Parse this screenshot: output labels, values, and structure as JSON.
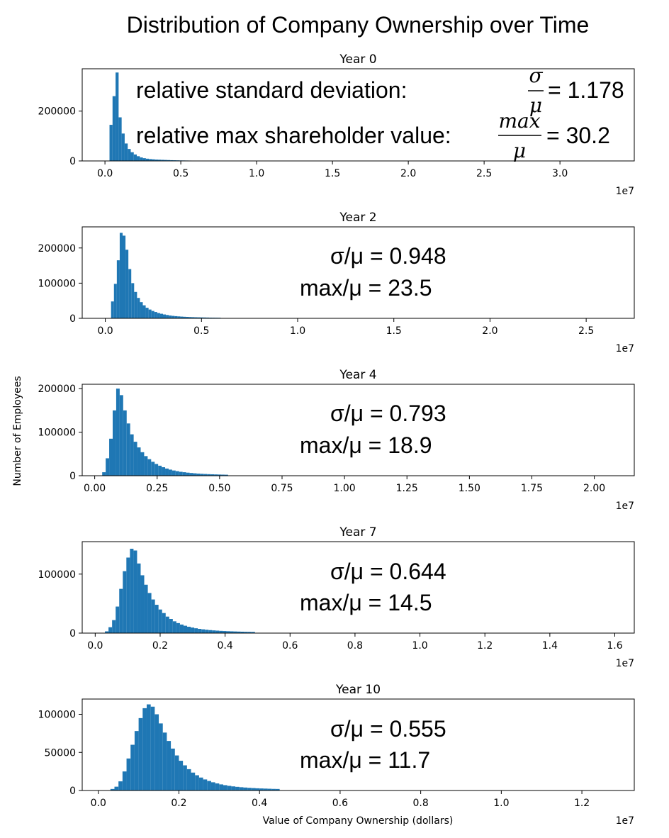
{
  "figure": {
    "suptitle": "Distribution of Company Ownership over Time",
    "ylabel": "Number of Employees",
    "xlabel": "Value of Company Ownership (dollars)",
    "bar_color": "#1f77b4",
    "offset_text": "1e7"
  },
  "annotations": {
    "year0": {
      "rsd_label": "relative standard deviation:",
      "max_label": "relative max shareholder value:",
      "sigma": "σ",
      "mu": "μ",
      "max": "max",
      "rsd_value": "= 1.178",
      "max_value": "= 30.2"
    },
    "others": [
      {
        "rsd": "σ/μ = 0.948",
        "max": "max/μ = 23.5"
      },
      {
        "rsd": "σ/μ = 0.793",
        "max": "max/μ = 18.9"
      },
      {
        "rsd": "σ/μ = 0.644",
        "max": "max/μ = 14.5"
      },
      {
        "rsd": "σ/μ = 0.555",
        "max": "max/μ = 11.7"
      }
    ]
  },
  "chart_data": [
    {
      "type": "bar",
      "title": "Year 0",
      "xlabel": "",
      "ylabel": "Number of Employees",
      "xlim": [
        -1500000,
        34900000
      ],
      "ylim": [
        0,
        370000
      ],
      "xticks": [
        0,
        5000000,
        10000000,
        15000000,
        20000000,
        25000000,
        30000000
      ],
      "xtick_labels": [
        "0.0",
        "0.5",
        "1.0",
        "1.5",
        "2.0",
        "2.5",
        "3.0"
      ],
      "yticks": [
        0,
        200000
      ],
      "ytick_labels": [
        "0",
        "200000"
      ],
      "bin_start": 300000,
      "bin_width": 200000,
      "values": [
        145000,
        260000,
        355000,
        175000,
        110000,
        70000,
        48000,
        35000,
        26000,
        19000,
        14000,
        11000,
        9000,
        7500,
        6500,
        5500,
        5000,
        4500,
        4000,
        3500,
        3000,
        2700,
        2400,
        2100,
        1900,
        1700,
        1500,
        1300,
        1200,
        1100
      ]
    },
    {
      "type": "bar",
      "title": "Year 2",
      "xlabel": "",
      "ylabel": "Number of Employees",
      "xlim": [
        -1200000,
        27500000
      ],
      "ylim": [
        0,
        260000
      ],
      "xticks": [
        0,
        5000000,
        10000000,
        15000000,
        20000000,
        25000000
      ],
      "xtick_labels": [
        "0.0",
        "0.5",
        "1.0",
        "1.5",
        "2.0",
        "2.5"
      ],
      "yticks": [
        0,
        100000,
        200000
      ],
      "ytick_labels": [
        "0",
        "100000",
        "200000"
      ],
      "bin_start": 300000,
      "bin_width": 150000,
      "values": [
        48000,
        98000,
        165000,
        243000,
        235000,
        195000,
        140000,
        100000,
        75000,
        58000,
        46000,
        37000,
        30000,
        25000,
        21000,
        18000,
        15000,
        13000,
        11000,
        9500,
        8000,
        7000,
        6200,
        5500,
        4900,
        4400,
        4000,
        3600,
        3300,
        3000,
        2800,
        2600,
        2400,
        2200,
        2000,
        1900,
        1800,
        1700
      ]
    },
    {
      "type": "bar",
      "title": "Year 4",
      "xlabel": "",
      "ylabel": "Number of Employees",
      "xlim": [
        -500000,
        21600000
      ],
      "ylim": [
        0,
        210000
      ],
      "xticks": [
        0,
        2500000,
        5000000,
        7500000,
        10000000,
        12500000,
        15000000,
        17500000,
        20000000
      ],
      "xtick_labels": [
        "0.00",
        "0.25",
        "0.50",
        "0.75",
        "1.00",
        "1.25",
        "1.50",
        "1.75",
        "2.00"
      ],
      "yticks": [
        0,
        100000,
        200000
      ],
      "ytick_labels": [
        "0",
        "100000",
        "200000"
      ],
      "bin_start": 300000,
      "bin_width": 140000,
      "values": [
        8000,
        40000,
        85000,
        150000,
        200000,
        185000,
        150000,
        120000,
        95000,
        78000,
        65000,
        54000,
        45000,
        38000,
        32000,
        27000,
        23000,
        19500,
        16500,
        14000,
        12000,
        10500,
        9000,
        8000,
        7000,
        6200,
        5500,
        4900,
        4400,
        4000,
        3600,
        3300,
        3000,
        2700,
        2500,
        2300
      ]
    },
    {
      "type": "bar",
      "title": "Year 7",
      "xlabel": "",
      "ylabel": "Number of Employees",
      "xlim": [
        -400000,
        16600000
      ],
      "ylim": [
        0,
        155000
      ],
      "xticks": [
        0,
        2000000,
        4000000,
        6000000,
        8000000,
        10000000,
        12000000,
        14000000,
        16000000
      ],
      "xtick_labels": [
        "0.0",
        "0.2",
        "0.4",
        "0.6",
        "0.8",
        "1.0",
        "1.2",
        "1.4",
        "1.6"
      ],
      "yticks": [
        0,
        100000
      ],
      "ytick_labels": [
        "0",
        "100000"
      ],
      "bin_start": 300000,
      "bin_width": 110000,
      "values": [
        3000,
        10000,
        22000,
        45000,
        75000,
        105000,
        128000,
        143000,
        140000,
        118000,
        98000,
        82000,
        68000,
        57000,
        48000,
        40000,
        34000,
        28000,
        24000,
        20000,
        17000,
        14500,
        12500,
        10800,
        9400,
        8200,
        7200,
        6400,
        5700,
        5100,
        4600,
        4200,
        3800,
        3500,
        3200,
        3000,
        2800,
        2600,
        2400,
        2200,
        2100,
        2000
      ]
    },
    {
      "type": "bar",
      "title": "Year 10",
      "xlabel": "Value of Company Ownership (dollars)",
      "ylabel": "Number of Employees",
      "xlim": [
        -400000,
        13300000
      ],
      "ylim": [
        0,
        120000
      ],
      "xticks": [
        0,
        2000000,
        4000000,
        6000000,
        8000000,
        10000000,
        12000000
      ],
      "xtick_labels": [
        "0.0",
        "0.2",
        "0.4",
        "0.6",
        "0.8",
        "1.0",
        "1.2"
      ],
      "yticks": [
        0,
        50000,
        100000
      ],
      "ytick_labels": [
        "0",
        "50000",
        "100000"
      ],
      "bin_start": 300000,
      "bin_width": 100000,
      "values": [
        2000,
        5000,
        12000,
        25000,
        42000,
        60000,
        78000,
        95000,
        108000,
        113000,
        110000,
        100000,
        88000,
        76000,
        65000,
        55000,
        46000,
        39000,
        33000,
        28000,
        23500,
        20000,
        17000,
        14500,
        12500,
        10800,
        9300,
        8000,
        7000,
        6100,
        5400,
        4800,
        4300,
        3900,
        3500,
        3200,
        2900,
        2700,
        2500,
        2300,
        2100,
        2000
      ]
    }
  ]
}
